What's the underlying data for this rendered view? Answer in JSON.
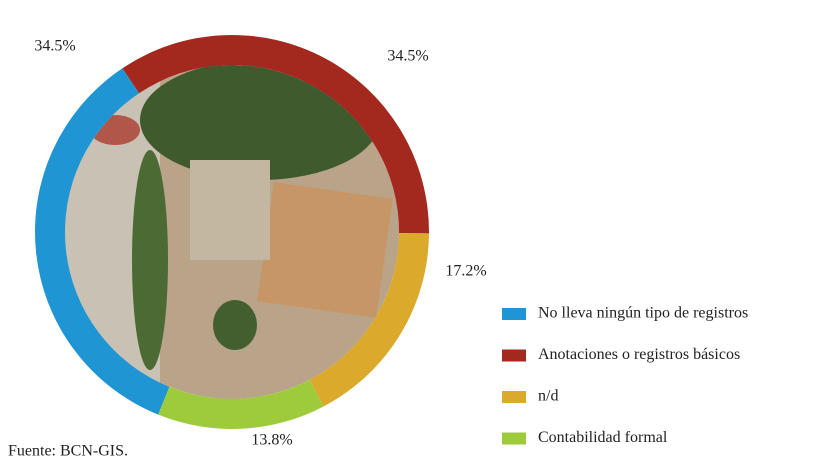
{
  "chart_data": {
    "type": "donut",
    "categories": [
      "No lleva ningún tipo de registros",
      "Anotaciones o registros básicos",
      "n/d",
      "Contabilidad formal"
    ],
    "values": [
      34.5,
      34.5,
      17.2,
      13.8
    ],
    "value_labels": [
      "34.5%",
      "34.5%",
      "17.2%",
      "13.8%"
    ],
    "colors": [
      "#1f96d3",
      "#a3291f",
      "#dba92b",
      "#9dcb3b"
    ],
    "legend": "right",
    "source": "Fuente: BCN-GIS."
  }
}
